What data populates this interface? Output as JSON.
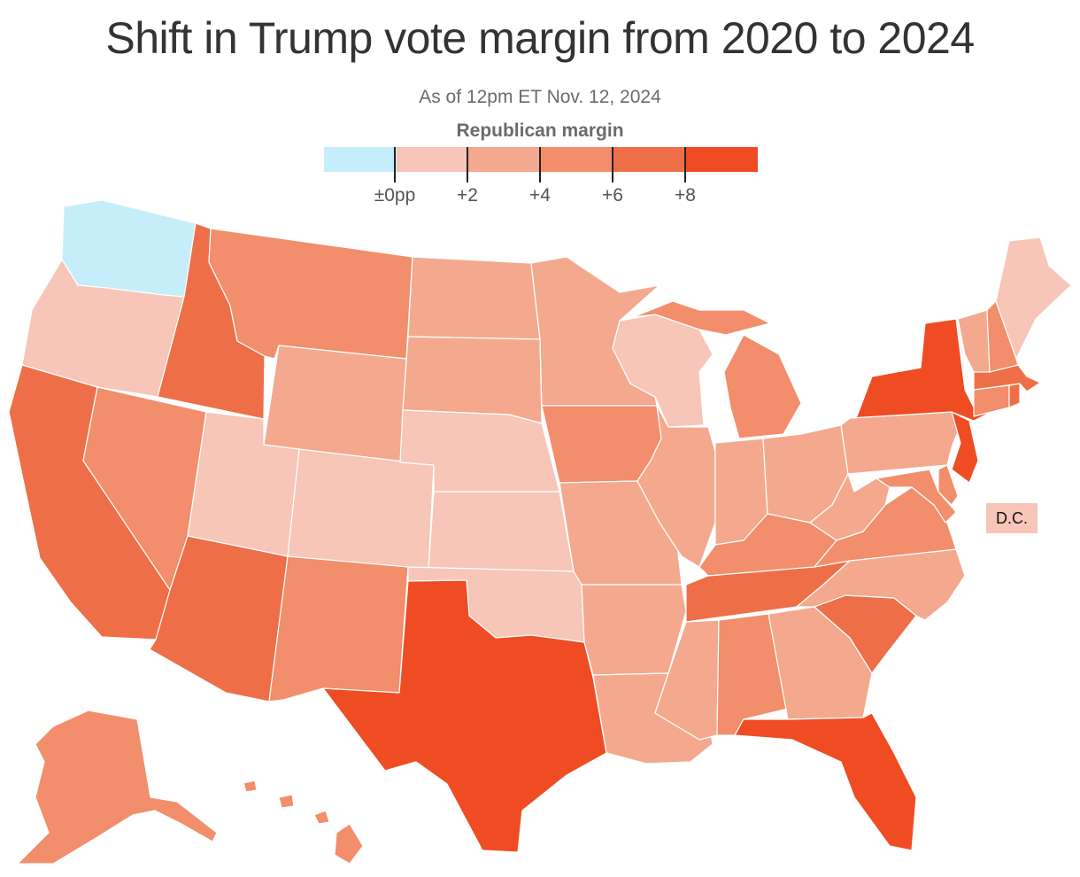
{
  "header": {
    "title": "Shift in Trump vote margin from 2020 to 2024",
    "subtitle": "As of 12pm ET Nov. 12, 2024"
  },
  "legend": {
    "title": "Republican margin",
    "bins": [
      {
        "color": "#c6eefa"
      },
      {
        "color": "#f7c6b8"
      },
      {
        "color": "#f4a98f"
      },
      {
        "color": "#f28e6b"
      },
      {
        "color": "#ee6f47"
      },
      {
        "color": "#ef4c23"
      }
    ],
    "ticks": [
      {
        "label": "±0pp",
        "value": 0
      },
      {
        "label": "+2",
        "value": 2
      },
      {
        "label": "+4",
        "value": 4
      },
      {
        "label": "+6",
        "value": 6
      },
      {
        "label": "+8",
        "value": 8
      }
    ]
  },
  "dc": {
    "label": "D.C.",
    "bin": 1
  },
  "states": [
    {
      "name": "Washington",
      "bin": 0
    },
    {
      "name": "Oregon",
      "bin": 1
    },
    {
      "name": "California",
      "bin": 4
    },
    {
      "name": "Nevada",
      "bin": 3
    },
    {
      "name": "Idaho",
      "bin": 4
    },
    {
      "name": "Montana",
      "bin": 3
    },
    {
      "name": "Wyoming",
      "bin": 2
    },
    {
      "name": "Utah",
      "bin": 1
    },
    {
      "name": "Arizona",
      "bin": 4
    },
    {
      "name": "Colorado",
      "bin": 1
    },
    {
      "name": "New Mexico",
      "bin": 3
    },
    {
      "name": "North Dakota",
      "bin": 2
    },
    {
      "name": "South Dakota",
      "bin": 2
    },
    {
      "name": "Nebraska",
      "bin": 1
    },
    {
      "name": "Kansas",
      "bin": 1
    },
    {
      "name": "Oklahoma",
      "bin": 1
    },
    {
      "name": "Texas",
      "bin": 5
    },
    {
      "name": "Minnesota",
      "bin": 2
    },
    {
      "name": "Iowa",
      "bin": 3
    },
    {
      "name": "Missouri",
      "bin": 2
    },
    {
      "name": "Arkansas",
      "bin": 2
    },
    {
      "name": "Louisiana",
      "bin": 2
    },
    {
      "name": "Wisconsin",
      "bin": 1
    },
    {
      "name": "Illinois",
      "bin": 2
    },
    {
      "name": "Michigan",
      "bin": 3
    },
    {
      "name": "Indiana",
      "bin": 2
    },
    {
      "name": "Ohio",
      "bin": 2
    },
    {
      "name": "Kentucky",
      "bin": 3
    },
    {
      "name": "Tennessee",
      "bin": 4
    },
    {
      "name": "Mississippi",
      "bin": 2
    },
    {
      "name": "Alabama",
      "bin": 3
    },
    {
      "name": "Georgia",
      "bin": 2
    },
    {
      "name": "Florida",
      "bin": 5
    },
    {
      "name": "South Carolina",
      "bin": 4
    },
    {
      "name": "North Carolina",
      "bin": 2
    },
    {
      "name": "Virginia",
      "bin": 3
    },
    {
      "name": "West Virginia",
      "bin": 2
    },
    {
      "name": "Maryland",
      "bin": 3
    },
    {
      "name": "Delaware",
      "bin": 3
    },
    {
      "name": "Pennsylvania",
      "bin": 2
    },
    {
      "name": "New Jersey",
      "bin": 5
    },
    {
      "name": "New York",
      "bin": 5
    },
    {
      "name": "Connecticut",
      "bin": 3
    },
    {
      "name": "Rhode Island",
      "bin": 4
    },
    {
      "name": "Massachusetts",
      "bin": 4
    },
    {
      "name": "Vermont",
      "bin": 2
    },
    {
      "name": "New Hampshire",
      "bin": 3
    },
    {
      "name": "Maine",
      "bin": 1
    },
    {
      "name": "Alaska",
      "bin": 3
    },
    {
      "name": "Hawaii",
      "bin": 3
    }
  ]
}
